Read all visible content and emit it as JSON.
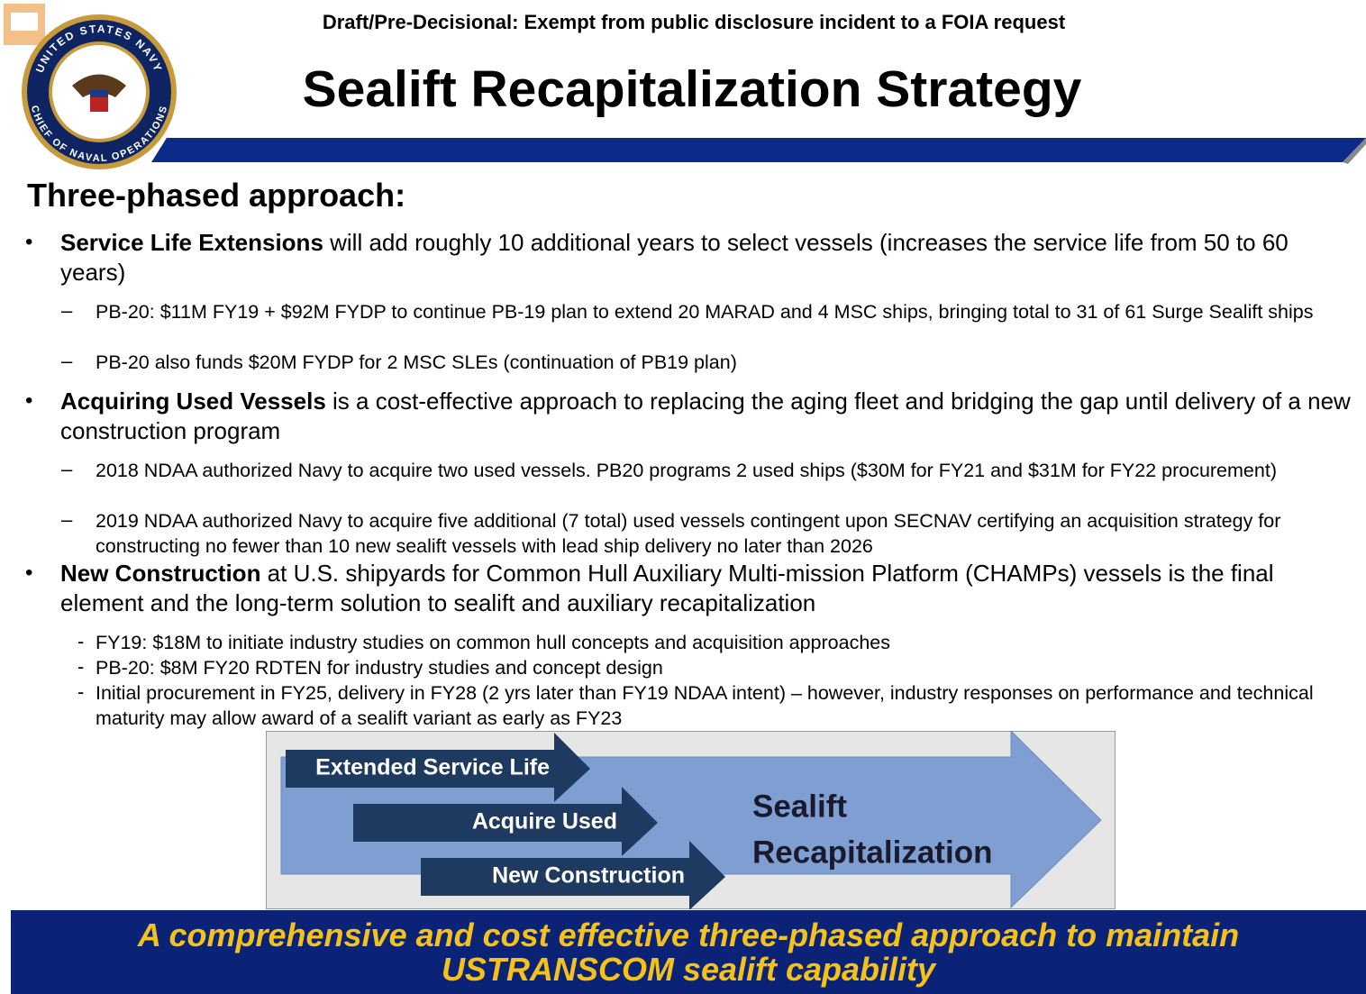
{
  "header": {
    "classification": "Draft/Pre-Decisional:  Exempt from public disclosure incident to a FOIA request",
    "title": "Sealift Recapitalization Strategy"
  },
  "seal": {
    "top": "UNITED STATES NAVY",
    "bottom": "CHIEF OF NAVAL OPERATIONS"
  },
  "section_title": "Three-phased approach:",
  "bullets": [
    {
      "lead": "Service Life Extensions",
      "text": " will add roughly 10 additional years to select vessels (increases the service life from 50 to 60 years)",
      "subitems": [
        "PB-20: $11M FY19 + $92M FYDP to continue PB-19 plan to extend 20 MARAD and 4 MSC ships, bringing total to 31 of 61 Surge Sealift ships",
        "PB-20 also funds $20M FYDP for 2 MSC SLEs (continuation of PB19 plan)"
      ]
    },
    {
      "lead": "Acquiring Used Vessels",
      "text": " is a cost-effective approach to replacing the aging fleet and bridging the gap until delivery of a new construction program",
      "subitems": [
        "2018 NDAA authorized Navy to acquire two used vessels. PB20 programs 2 used ships ($30M for FY21 and $31M for FY22 procurement)",
        "2019 NDAA authorized Navy to acquire five additional (7 total) used vessels contingent upon SECNAV certifying an acquisition strategy for constructing no fewer than 10 new sealift vessels with lead ship delivery no later than 2026"
      ]
    },
    {
      "lead": "New Construction",
      "text": " at U.S. shipyards for Common Hull Auxiliary Multi-mission Platform (CHAMPs) vessels is the final element and the long-term solution to sealift and auxiliary recapitalization",
      "subitems": [
        "FY19: $18M to initiate industry studies on common hull concepts and acquisition approaches",
        "PB-20: $8M FY20 RDTEN for industry studies and concept design",
        "Initial procurement in FY25, delivery in FY28 (2 yrs later than FY19 NDAA intent) – however, industry responses on performance and technical maturity may allow award of a sealift variant as early as FY23"
      ]
    }
  ],
  "diagram": {
    "phases": [
      "Extended Service Life",
      "Acquire Used",
      "New Construction"
    ],
    "target": [
      "Sealift",
      "Recapitalization"
    ]
  },
  "footer": [
    "A comprehensive and cost effective three-phased approach to maintain",
    "USTRANSCOM sealift capability"
  ]
}
